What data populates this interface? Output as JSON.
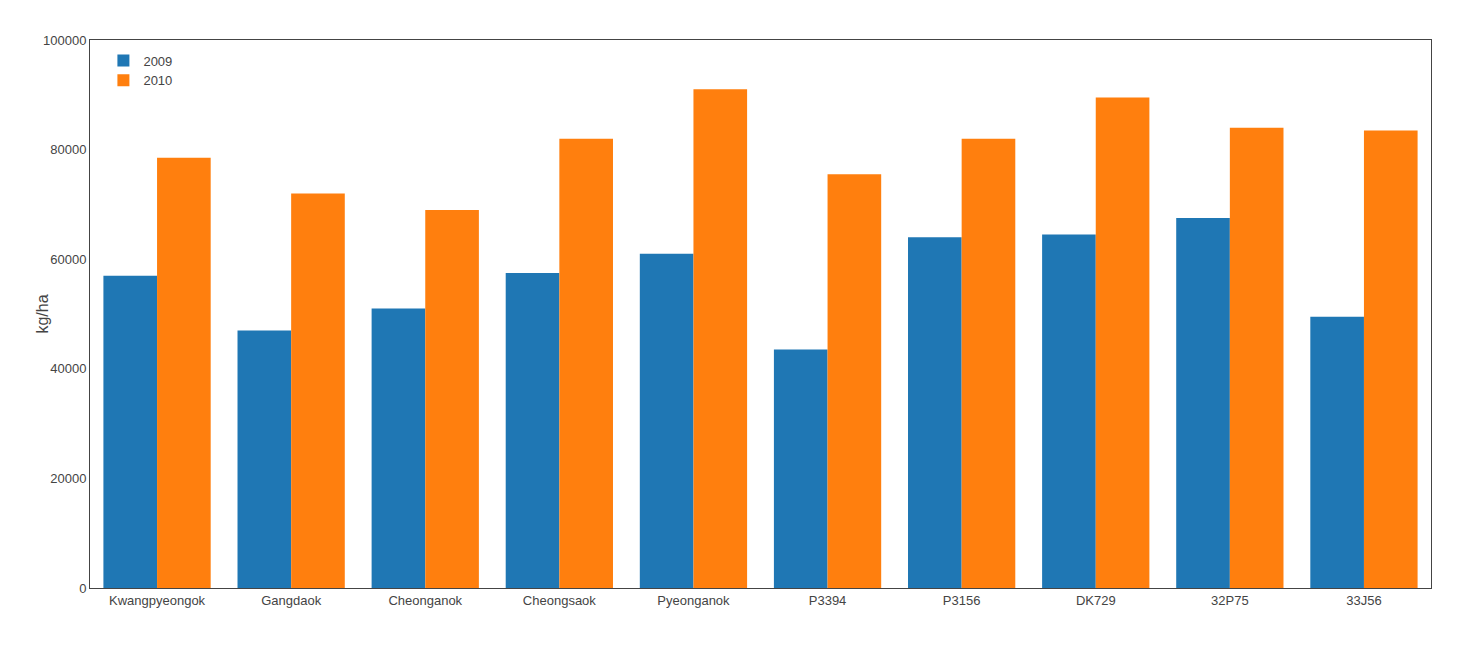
{
  "chart_data": {
    "type": "bar",
    "categories": [
      "Kwangpyeongok",
      "Gangdaok",
      "Cheonganok",
      "Cheongsaok",
      "Pyeonganok",
      "P3394",
      "P3156",
      "DK729",
      "32P75",
      "33J56"
    ],
    "series": [
      {
        "name": "2009",
        "values": [
          57000,
          47000,
          51000,
          57500,
          61000,
          43500,
          64000,
          64500,
          67500,
          49500
        ]
      },
      {
        "name": "2010",
        "values": [
          78500,
          72000,
          69000,
          82000,
          91000,
          75500,
          82000,
          89500,
          84000,
          83500
        ]
      }
    ],
    "y_label": "kg/ha",
    "ylim": [
      0,
      100000
    ],
    "yticks": [
      0,
      20000,
      40000,
      60000,
      80000,
      100000
    ],
    "grid": false,
    "legend": "upper left"
  }
}
